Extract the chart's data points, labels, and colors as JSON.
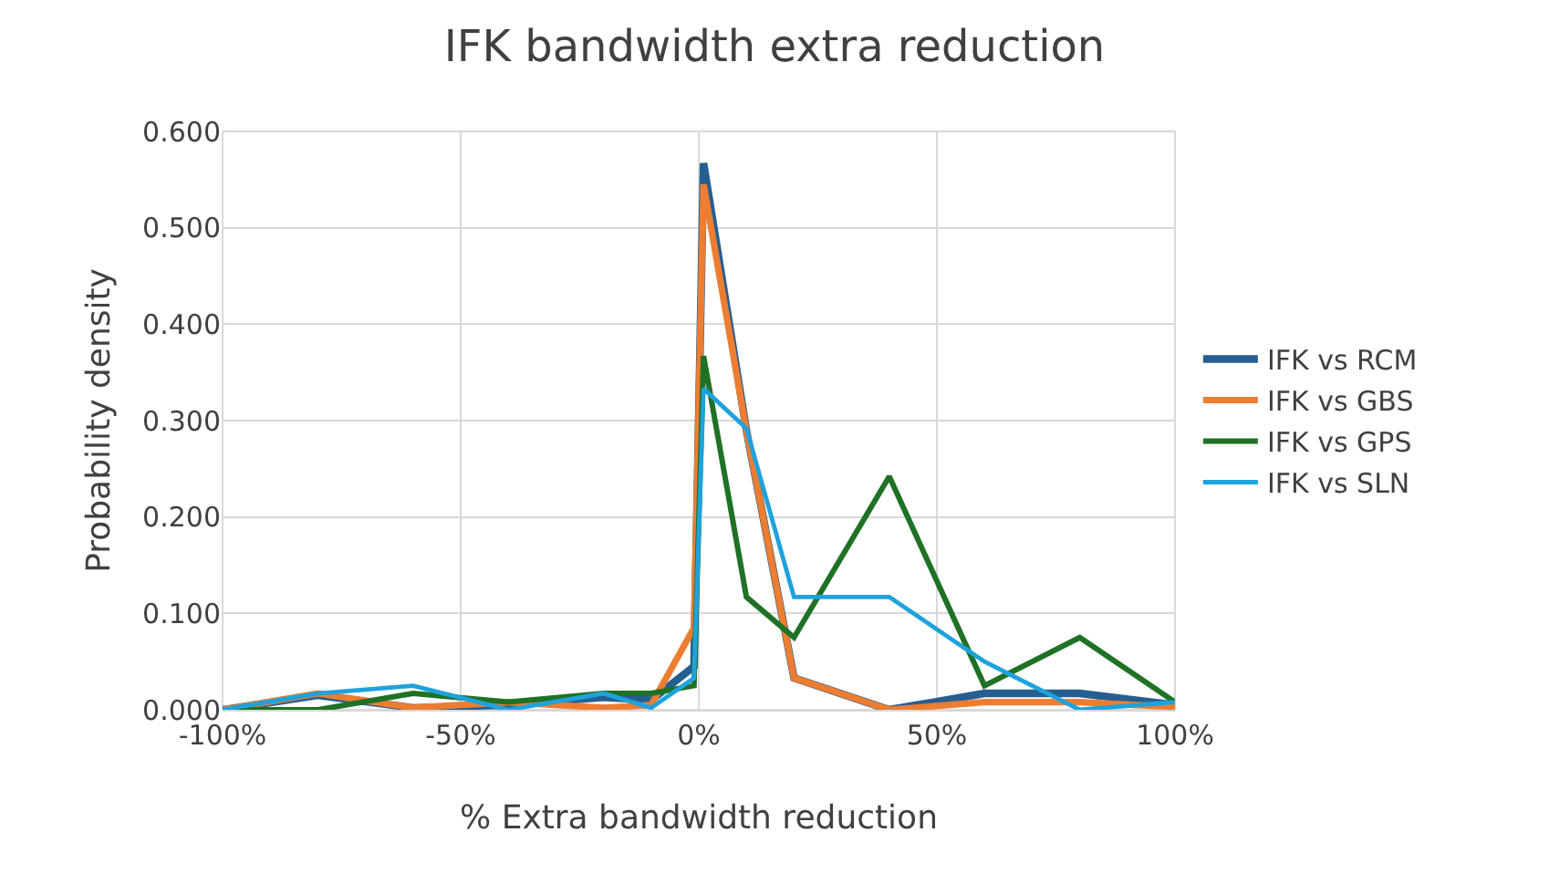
{
  "chart_data": {
    "type": "line",
    "title": "IFK bandwidth extra reduction",
    "xlabel": "% Extra bandwidth reduction",
    "ylabel": "Probability density",
    "x": [
      -100,
      -80,
      -60,
      -40,
      -20,
      -10,
      -1,
      1,
      10,
      20,
      40,
      60,
      80,
      100
    ],
    "series": [
      {
        "name": "IFK vs RCM",
        "color": "#255e91",
        "values": [
          0,
          0.015,
          0.002,
          0.005,
          0.013,
          0.01,
          0.045,
          0.567,
          0.29,
          0.033,
          0,
          0.017,
          0.017,
          0.005
        ]
      },
      {
        "name": "IFK vs GBS",
        "color": "#ed7d31",
        "values": [
          0,
          0.017,
          0.002,
          0.008,
          0.002,
          0.005,
          0.085,
          0.545,
          0.29,
          0.033,
          0,
          0.008,
          0.008,
          0.003
        ]
      },
      {
        "name": "IFK vs GPS",
        "color": "#1e7125",
        "values": [
          0,
          0,
          0.017,
          0.008,
          0.017,
          0.017,
          0.025,
          0.367,
          0.117,
          0.075,
          0.242,
          0.025,
          0.075,
          0.008
        ]
      },
      {
        "name": "IFK vs SLN",
        "color": "#1fa2dc",
        "values": [
          0,
          0.017,
          0.025,
          0,
          0.017,
          0.002,
          0.033,
          0.333,
          0.292,
          0.117,
          0.117,
          0.05,
          0,
          0.008
        ]
      }
    ],
    "xlim": [
      -100,
      100
    ],
    "xticks": [
      {
        "value": -100,
        "label": "-100%"
      },
      {
        "value": -50,
        "label": "-50%"
      },
      {
        "value": 0,
        "label": "0%"
      },
      {
        "value": 50,
        "label": "50%"
      },
      {
        "value": 100,
        "label": "100%"
      }
    ],
    "ylim": [
      0,
      0.6
    ],
    "yticks": [
      {
        "value": 0,
        "label": "0.000"
      },
      {
        "value": 0.1,
        "label": "0.100"
      },
      {
        "value": 0.2,
        "label": "0.200"
      },
      {
        "value": 0.3,
        "label": "0.300"
      },
      {
        "value": 0.4,
        "label": "0.400"
      },
      {
        "value": 0.5,
        "label": "0.500"
      },
      {
        "value": 0.6,
        "label": "0.600"
      }
    ],
    "grid": true,
    "legend": "right",
    "marker": "none",
    "line_style": "solid"
  }
}
